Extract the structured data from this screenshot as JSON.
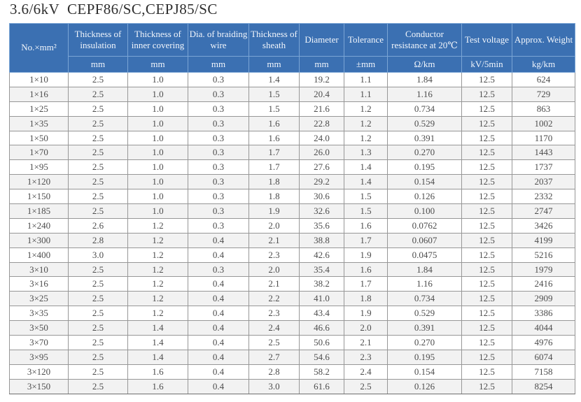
{
  "title": "3.6/6kV  CEPF86/SC,CEPJ85/SC",
  "colors": {
    "header_bg": "#3b70b2",
    "header_text": "#f2f6fc",
    "header_grid": "#7aa5d5",
    "body_grid": "#979797",
    "body_text": "#4d4d4d",
    "row_stripe": "#f2f2f2"
  },
  "table": {
    "columns": [
      {
        "key": "size",
        "label": "No.×mm²",
        "unit": ""
      },
      {
        "key": "insulation",
        "label": "Thickness of insulation",
        "unit": "mm"
      },
      {
        "key": "inner_covering",
        "label": "Thickness of inner covering",
        "unit": "mm"
      },
      {
        "key": "braiding_wire",
        "label": "Dia. of braiding wire",
        "unit": "mm"
      },
      {
        "key": "sheath",
        "label": "Thickness of sheath",
        "unit": "mm"
      },
      {
        "key": "diameter",
        "label": "Diameter",
        "unit": "mm"
      },
      {
        "key": "tolerance",
        "label": "Tolerance",
        "unit": "±mm"
      },
      {
        "key": "resistance",
        "label": "Conductor resistance at 20℃",
        "unit": "Ω/km"
      },
      {
        "key": "test_voltage",
        "label": "Test voltage",
        "unit": "kV/5min"
      },
      {
        "key": "weight",
        "label": "Approx. Weight",
        "unit": "kg/km"
      }
    ],
    "rows": [
      [
        "1×10",
        "2.5",
        "1.0",
        "0.3",
        "1.4",
        "19.2",
        "1.1",
        "1.84",
        "12.5",
        "624"
      ],
      [
        "1×16",
        "2.5",
        "1.0",
        "0.3",
        "1.5",
        "20.4",
        "1.1",
        "1.16",
        "12.5",
        "729"
      ],
      [
        "1×25",
        "2.5",
        "1.0",
        "0.3",
        "1.5",
        "21.6",
        "1.2",
        "0.734",
        "12.5",
        "863"
      ],
      [
        "1×35",
        "2.5",
        "1.0",
        "0.3",
        "1.6",
        "22.8",
        "1.2",
        "0.529",
        "12.5",
        "1002"
      ],
      [
        "1×50",
        "2.5",
        "1.0",
        "0.3",
        "1.6",
        "24.0",
        "1.2",
        "0.391",
        "12.5",
        "1170"
      ],
      [
        "1×70",
        "2.5",
        "1.0",
        "0.3",
        "1.7",
        "26.0",
        "1.3",
        "0.270",
        "12.5",
        "1443"
      ],
      [
        "1×95",
        "2.5",
        "1.0",
        "0.3",
        "1.7",
        "27.6",
        "1.4",
        "0.195",
        "12.5",
        "1737"
      ],
      [
        "1×120",
        "2.5",
        "1.0",
        "0.3",
        "1.8",
        "29.2",
        "1.4",
        "0.154",
        "12.5",
        "2037"
      ],
      [
        "1×150",
        "2.5",
        "1.0",
        "0.3",
        "1.8",
        "30.6",
        "1.5",
        "0.126",
        "12.5",
        "2332"
      ],
      [
        "1×185",
        "2.5",
        "1.0",
        "0.3",
        "1.9",
        "32.6",
        "1.5",
        "0.100",
        "12.5",
        "2747"
      ],
      [
        "1×240",
        "2.6",
        "1.2",
        "0.3",
        "2.0",
        "35.6",
        "1.6",
        "0.0762",
        "12.5",
        "3426"
      ],
      [
        "1×300",
        "2.8",
        "1.2",
        "0.4",
        "2.1",
        "38.8",
        "1.7",
        "0.0607",
        "12.5",
        "4199"
      ],
      [
        "1×400",
        "3.0",
        "1.2",
        "0.4",
        "2.3",
        "42.6",
        "1.9",
        "0.0475",
        "12.5",
        "5216"
      ],
      [
        "3×10",
        "2.5",
        "1.2",
        "0.3",
        "2.0",
        "35.4",
        "1.6",
        "1.84",
        "12.5",
        "1979"
      ],
      [
        "3×16",
        "2.5",
        "1.2",
        "0.4",
        "2.1",
        "38.2",
        "1.7",
        "1.16",
        "12.5",
        "2416"
      ],
      [
        "3×25",
        "2.5",
        "1.2",
        "0.4",
        "2.2",
        "41.0",
        "1.8",
        "0.734",
        "12.5",
        "2909"
      ],
      [
        "3×35",
        "2.5",
        "1.2",
        "0.4",
        "2.3",
        "43.4",
        "1.9",
        "0.529",
        "12.5",
        "3386"
      ],
      [
        "3×50",
        "2.5",
        "1.4",
        "0.4",
        "2.4",
        "46.6",
        "2.0",
        "0.391",
        "12.5",
        "4044"
      ],
      [
        "3×70",
        "2.5",
        "1.4",
        "0.4",
        "2.5",
        "50.6",
        "2.1",
        "0.270",
        "12.5",
        "4976"
      ],
      [
        "3×95",
        "2.5",
        "1.4",
        "0.4",
        "2.7",
        "54.6",
        "2.3",
        "0.195",
        "12.5",
        "6074"
      ],
      [
        "3×120",
        "2.5",
        "1.6",
        "0.4",
        "2.8",
        "58.2",
        "2.4",
        "0.154",
        "12.5",
        "7158"
      ],
      [
        "3×150",
        "2.5",
        "1.6",
        "0.4",
        "3.0",
        "61.6",
        "2.5",
        "0.126",
        "12.5",
        "8254"
      ]
    ]
  }
}
